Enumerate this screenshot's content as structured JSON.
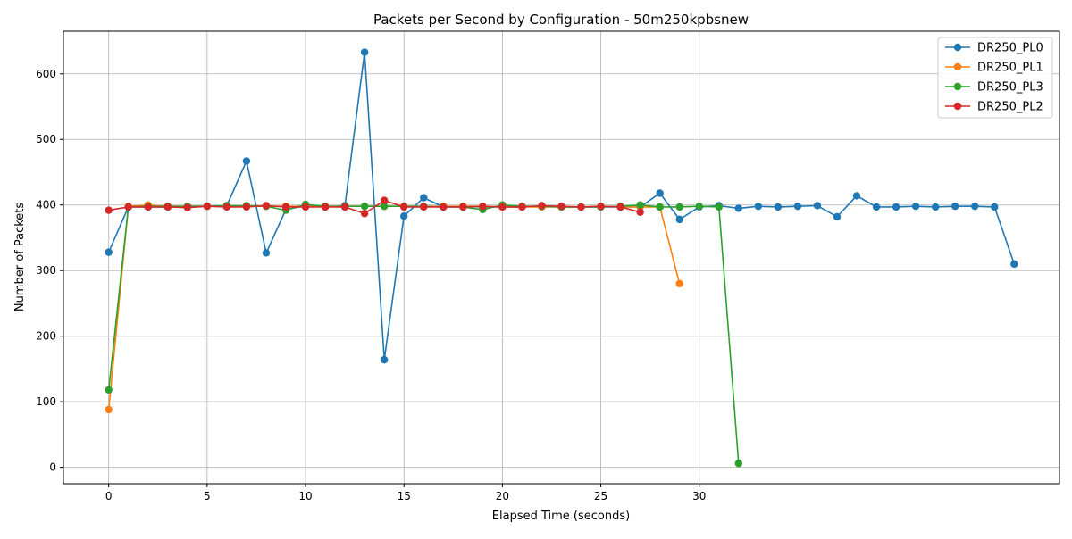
{
  "chart_data": {
    "type": "line",
    "title": "Packets per Second by Configuration - 50m250kpbsnew",
    "xlabel": "Elapsed Time (seconds)",
    "ylabel": "Number of Packets",
    "xlim": [
      -2.3,
      48.3
    ],
    "ylim": [
      -25,
      665
    ],
    "xticks": [
      0,
      5,
      10,
      15,
      20,
      25,
      30
    ],
    "yticks": [
      0,
      100,
      200,
      300,
      400,
      500,
      600
    ],
    "grid": true,
    "legend_position": "top-right",
    "series": [
      {
        "name": "DR250_PL0",
        "color": "#1f77b4",
        "x": [
          0,
          1,
          2,
          3,
          4,
          5,
          6,
          7,
          8,
          9,
          10,
          11,
          12,
          13,
          14,
          15,
          16,
          17,
          18,
          19,
          20,
          21,
          22,
          23,
          24,
          25,
          26,
          27,
          28,
          29,
          30,
          31,
          32,
          33,
          34,
          35,
          36,
          37,
          38,
          39,
          40,
          41,
          42,
          43,
          44,
          45,
          46
        ],
        "y": [
          328,
          397,
          397,
          397,
          398,
          398,
          399,
          467,
          327,
          393,
          399,
          397,
          399,
          633,
          164,
          383,
          411,
          397,
          398,
          397,
          397,
          397,
          398,
          397,
          397,
          397,
          397,
          397,
          418,
          378,
          397,
          399,
          395,
          398,
          397,
          398,
          399,
          382,
          414,
          397,
          397,
          398,
          397,
          398,
          398,
          397,
          310
        ]
      },
      {
        "name": "DR250_PL1",
        "color": "#ff7f0e",
        "x": [
          0,
          1,
          2,
          3,
          4,
          5,
          6,
          7,
          8,
          9,
          10,
          11,
          12,
          13,
          14,
          15,
          16,
          17,
          18,
          19,
          20,
          21,
          22,
          23,
          24,
          25,
          26,
          27,
          28,
          29
        ],
        "y": [
          88,
          398,
          400,
          398,
          398,
          398,
          398,
          398,
          398,
          398,
          398,
          398,
          398,
          398,
          398,
          398,
          398,
          398,
          398,
          398,
          397,
          397,
          397,
          397,
          397,
          398,
          397,
          397,
          397,
          280
        ]
      },
      {
        "name": "DR250_PL3",
        "color": "#2ca02c",
        "x": [
          0,
          1,
          2,
          3,
          4,
          5,
          6,
          7,
          8,
          9,
          10,
          11,
          12,
          13,
          14,
          15,
          16,
          17,
          18,
          19,
          20,
          21,
          22,
          23,
          24,
          25,
          26,
          27,
          28,
          29,
          30,
          31,
          32
        ],
        "y": [
          118,
          397,
          398,
          398,
          398,
          398,
          399,
          399,
          398,
          392,
          401,
          398,
          398,
          398,
          398,
          398,
          398,
          397,
          397,
          393,
          400,
          398,
          398,
          397,
          397,
          397,
          398,
          400,
          397,
          397,
          398,
          397,
          6
        ]
      },
      {
        "name": "DR250_PL2",
        "color": "#d62728",
        "x": [
          0,
          1,
          2,
          3,
          4,
          5,
          6,
          7,
          8,
          9,
          10,
          11,
          12,
          13,
          14,
          15,
          16,
          17,
          18,
          19,
          20,
          21,
          22,
          23,
          24,
          25,
          26,
          27
        ],
        "y": [
          392,
          397,
          397,
          397,
          396,
          398,
          397,
          397,
          399,
          397,
          397,
          397,
          397,
          387,
          407,
          397,
          397,
          397,
          397,
          398,
          397,
          397,
          399,
          398,
          397,
          398,
          397,
          389
        ]
      }
    ]
  }
}
